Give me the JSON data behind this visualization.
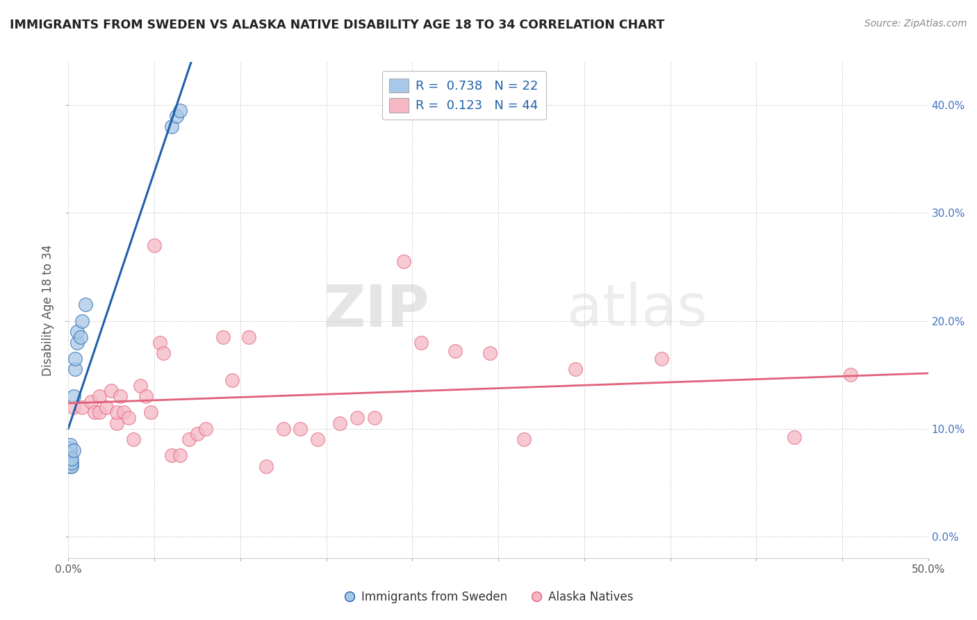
{
  "title": "IMMIGRANTS FROM SWEDEN VS ALASKA NATIVE DISABILITY AGE 18 TO 34 CORRELATION CHART",
  "source": "Source: ZipAtlas.com",
  "xlabel_bottom": [
    "Immigrants from Sweden",
    "Alaska Natives"
  ],
  "ylabel": "Disability Age 18 to 34",
  "xlim": [
    0.0,
    0.5
  ],
  "ylim": [
    -0.02,
    0.44
  ],
  "ytick_positions": [
    0.0,
    0.1,
    0.2,
    0.3,
    0.4
  ],
  "xtick_positions": [
    0.0,
    0.05,
    0.1,
    0.15,
    0.2,
    0.25,
    0.3,
    0.35,
    0.4,
    0.45,
    0.5
  ],
  "legend_blue_R": "0.738",
  "legend_blue_N": "22",
  "legend_pink_R": "0.123",
  "legend_pink_N": "44",
  "blue_scatter_x": [
    0.001,
    0.001,
    0.001,
    0.001,
    0.001,
    0.001,
    0.001,
    0.002,
    0.002,
    0.002,
    0.003,
    0.003,
    0.004,
    0.004,
    0.005,
    0.005,
    0.007,
    0.008,
    0.01,
    0.06,
    0.063,
    0.065
  ],
  "blue_scatter_y": [
    0.065,
    0.07,
    0.072,
    0.075,
    0.08,
    0.082,
    0.085,
    0.065,
    0.068,
    0.072,
    0.08,
    0.13,
    0.155,
    0.165,
    0.18,
    0.19,
    0.185,
    0.2,
    0.215,
    0.38,
    0.39,
    0.395
  ],
  "pink_scatter_x": [
    0.003,
    0.008,
    0.013,
    0.015,
    0.018,
    0.018,
    0.022,
    0.025,
    0.028,
    0.028,
    0.03,
    0.032,
    0.035,
    0.038,
    0.042,
    0.045,
    0.048,
    0.05,
    0.053,
    0.055,
    0.06,
    0.065,
    0.07,
    0.075,
    0.08,
    0.09,
    0.095,
    0.105,
    0.115,
    0.125,
    0.135,
    0.145,
    0.158,
    0.168,
    0.178,
    0.195,
    0.205,
    0.225,
    0.245,
    0.265,
    0.295,
    0.345,
    0.422,
    0.455
  ],
  "pink_scatter_y": [
    0.12,
    0.12,
    0.125,
    0.115,
    0.13,
    0.115,
    0.12,
    0.135,
    0.105,
    0.115,
    0.13,
    0.115,
    0.11,
    0.09,
    0.14,
    0.13,
    0.115,
    0.27,
    0.18,
    0.17,
    0.075,
    0.075,
    0.09,
    0.095,
    0.1,
    0.185,
    0.145,
    0.185,
    0.065,
    0.1,
    0.1,
    0.09,
    0.105,
    0.11,
    0.11,
    0.255,
    0.18,
    0.172,
    0.17,
    0.09,
    0.155,
    0.165,
    0.092,
    0.15
  ],
  "blue_color": "#A8C8E8",
  "pink_color": "#F5B8C4",
  "blue_line_color": "#2060A8",
  "pink_line_color": "#E0607A",
  "watermark_zip": "ZIP",
  "watermark_atlas": "atlas",
  "background_color": "#FFFFFF",
  "grid_color": "#CCCCCC"
}
